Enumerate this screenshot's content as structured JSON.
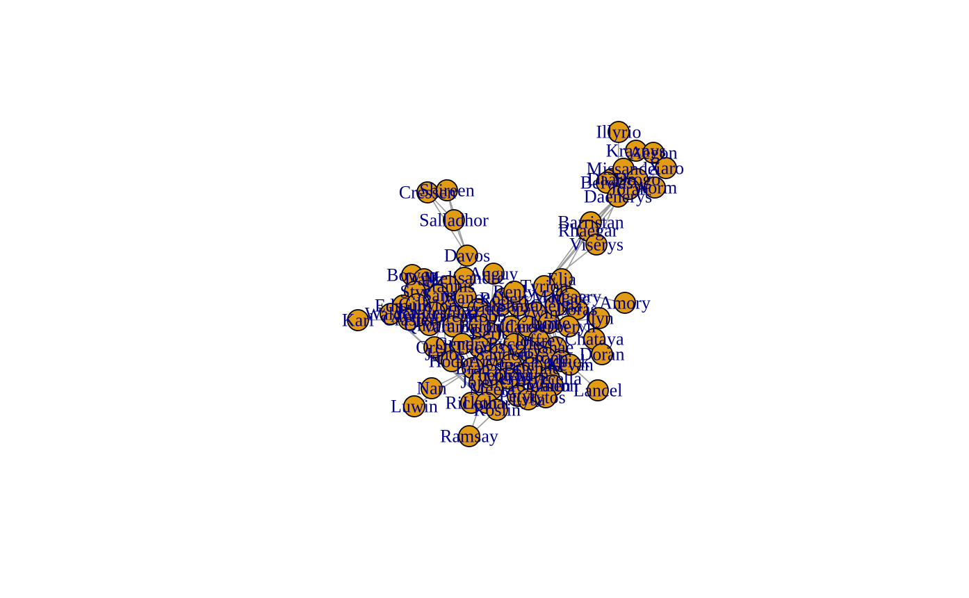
{
  "graph": {
    "style": {
      "node_fill": "#e29c13",
      "node_stroke": "#000000",
      "edge_color": "#9a9a9a",
      "label_color": "#00008b"
    },
    "nodes": [
      {
        "id": "Illyrio",
        "label": "Illyrio"
      },
      {
        "id": "Kraznys",
        "label": "Kraznys"
      },
      {
        "id": "Aegon",
        "label": "Aegon"
      },
      {
        "id": "Xaro",
        "label": "Xaro"
      },
      {
        "id": "Daario",
        "label": "Daario"
      },
      {
        "id": "Missandei",
        "label": "Missandei"
      },
      {
        "id": "Belwas",
        "label": "Belwas"
      },
      {
        "id": "Drogo",
        "label": "Drogo"
      },
      {
        "id": "Daenerys",
        "label": "Daenerys"
      },
      {
        "id": "Worm",
        "label": "Worm"
      },
      {
        "id": "Jorah",
        "label": "Jorah"
      },
      {
        "id": "Barristan",
        "label": "Barristan"
      },
      {
        "id": "Rhaegar",
        "label": "Rhaegar"
      },
      {
        "id": "Viserys",
        "label": "Viserys"
      },
      {
        "id": "Cressen",
        "label": "Cressen"
      },
      {
        "id": "Shireen",
        "label": "Shireen"
      },
      {
        "id": "Salladhor",
        "label": "Salladhor"
      },
      {
        "id": "Davos",
        "label": "Davos"
      },
      {
        "id": "Melisandre",
        "label": "Melisandre"
      },
      {
        "id": "Stannis",
        "label": "Stannis"
      },
      {
        "id": "Bowen",
        "label": "Bowen"
      },
      {
        "id": "Dalla",
        "label": "Dalla"
      },
      {
        "id": "Anguy",
        "label": "Anguy"
      },
      {
        "id": "Styr",
        "label": "Styr"
      },
      {
        "id": "Elia",
        "label": "Elia"
      },
      {
        "id": "Tyrion",
        "label": "Tyrion"
      },
      {
        "id": "Amory",
        "label": "Amory"
      },
      {
        "id": "Ilyn",
        "label": "Ilyn"
      },
      {
        "id": "Edmure",
        "label": "Edmure"
      },
      {
        "id": "Walder",
        "label": "Walder"
      },
      {
        "id": "Karl",
        "label": "Karl"
      },
      {
        "id": "Qhorin",
        "label": "Qhorin"
      },
      {
        "id": "Jon",
        "label": "Jon"
      },
      {
        "id": "Aemon",
        "label": "Aemon"
      },
      {
        "id": "Sam",
        "label": "Sam"
      },
      {
        "id": "Grenn",
        "label": "Grenn"
      },
      {
        "id": "Gilly",
        "label": "Gilly"
      },
      {
        "id": "Craster",
        "label": "Craster"
      },
      {
        "id": "Mance",
        "label": "Mance"
      },
      {
        "id": "Ygritte",
        "label": "Ygritte"
      },
      {
        "id": "Rattleshirt",
        "label": "Rattleshirt"
      },
      {
        "id": "Varamyr",
        "label": "Varamyr"
      },
      {
        "id": "Robb",
        "label": "Robb"
      },
      {
        "id": "Catelyn",
        "label": "Catelyn"
      },
      {
        "id": "Eddard",
        "label": "Eddard"
      },
      {
        "id": "Tywin",
        "label": "Tywin"
      },
      {
        "id": "Cersei",
        "label": "Cersei"
      },
      {
        "id": "Jaime",
        "label": "Jaime"
      },
      {
        "id": "Sansa",
        "label": "Sansa"
      },
      {
        "id": "Joffrey",
        "label": "Joffrey"
      },
      {
        "id": "Margaery",
        "label": "Margaery"
      },
      {
        "id": "Loras",
        "label": "Loras"
      },
      {
        "id": "Olenna",
        "label": "Olenna"
      },
      {
        "id": "Mace",
        "label": "Mace"
      },
      {
        "id": "Oberyn",
        "label": "Oberyn"
      },
      {
        "id": "Chataya",
        "label": "Chataya"
      },
      {
        "id": "Doran",
        "label": "Doran"
      },
      {
        "id": "Shae",
        "label": "Shae"
      },
      {
        "id": "Bronn",
        "label": "Bronn"
      },
      {
        "id": "Varys",
        "label": "Varys"
      },
      {
        "id": "Pycelle",
        "label": "Pycelle"
      },
      {
        "id": "Podrick",
        "label": "Podrick"
      },
      {
        "id": "Kevan",
        "label": "Kevan"
      },
      {
        "id": "Lancel",
        "label": "Lancel"
      },
      {
        "id": "Myrcella",
        "label": "Myrcella"
      },
      {
        "id": "Tommen",
        "label": "Tommen"
      },
      {
        "id": "Sandor",
        "label": "Sandor"
      },
      {
        "id": "Gregor",
        "label": "Gregor"
      },
      {
        "id": "Beric",
        "label": "Beric"
      },
      {
        "id": "Thoros",
        "label": "Thoros"
      },
      {
        "id": "Gendry",
        "label": "Gendry"
      },
      {
        "id": "Arya",
        "label": "Arya"
      },
      {
        "id": "Brienne",
        "label": "Brienne"
      },
      {
        "id": "Qyburn",
        "label": "Qyburn"
      },
      {
        "id": "Meryn",
        "label": "Meryn"
      },
      {
        "id": "Janos",
        "label": "Janos"
      },
      {
        "id": "Hodor",
        "label": "Hodor"
      },
      {
        "id": "Bran",
        "label": "Bran"
      },
      {
        "id": "Jojen",
        "label": "Jojen"
      },
      {
        "id": "Meera",
        "label": "Meera"
      },
      {
        "id": "Rickon",
        "label": "Rickon"
      },
      {
        "id": "Nan",
        "label": "Nan"
      },
      {
        "id": "Luwin",
        "label": "Luwin"
      },
      {
        "id": "Lothar",
        "label": "Lothar"
      },
      {
        "id": "Roslin",
        "label": "Roslin"
      },
      {
        "id": "Ramsay",
        "label": "Ramsay"
      },
      {
        "id": "Petyr",
        "label": "Petyr"
      },
      {
        "id": "Lysa",
        "label": "Lysa"
      },
      {
        "id": "Robert",
        "label": "Robert"
      },
      {
        "id": "Renly",
        "label": "Renly"
      },
      {
        "id": "Balon",
        "label": "Balon"
      },
      {
        "id": "Theon",
        "label": "Theon"
      },
      {
        "id": "Walton",
        "label": "Walton"
      },
      {
        "id": "Kevan2",
        "label": "Tytos"
      },
      {
        "id": "Orell",
        "label": "Orell"
      }
    ],
    "edges": [
      [
        "Illyrio",
        "Daenerys"
      ],
      [
        "Kraznys",
        "Daenerys"
      ],
      [
        "Aegon",
        "Daenerys"
      ],
      [
        "Xaro",
        "Daenerys"
      ],
      [
        "Daario",
        "Daenerys"
      ],
      [
        "Missandei",
        "Daenerys"
      ],
      [
        "Belwas",
        "Daenerys"
      ],
      [
        "Drogo",
        "Daenerys"
      ],
      [
        "Worm",
        "Daenerys"
      ],
      [
        "Jorah",
        "Daenerys"
      ],
      [
        "Barristan",
        "Daenerys"
      ],
      [
        "Rhaegar",
        "Daenerys"
      ],
      [
        "Viserys",
        "Daenerys"
      ],
      [
        "Jorah",
        "Barristan"
      ],
      [
        "Barristan",
        "Tyrion"
      ],
      [
        "Jorah",
        "Tyrion"
      ],
      [
        "Rhaegar",
        "Elia"
      ],
      [
        "Viserys",
        "Tyrion"
      ],
      [
        "Daenerys",
        "Tyrion"
      ],
      [
        "Drogo",
        "Jorah"
      ],
      [
        "Cressen",
        "Salladhor"
      ],
      [
        "Shireen",
        "Salladhor"
      ],
      [
        "Cressen",
        "Davos"
      ],
      [
        "Shireen",
        "Davos"
      ],
      [
        "Salladhor",
        "Davos"
      ],
      [
        "Davos",
        "Stannis"
      ],
      [
        "Davos",
        "Melisandre"
      ],
      [
        "Stannis",
        "Melisandre"
      ],
      [
        "Stannis",
        "Jon"
      ],
      [
        "Melisandre",
        "Jon"
      ],
      [
        "Bowen",
        "Jon"
      ],
      [
        "Dalla",
        "Jon"
      ],
      [
        "Styr",
        "Jon"
      ],
      [
        "Anguy",
        "Beric"
      ],
      [
        "Elia",
        "Oberyn"
      ],
      [
        "Tyrion",
        "Cersei"
      ],
      [
        "Amory",
        "Tyrion"
      ],
      [
        "Ilyn",
        "Cersei"
      ],
      [
        "Edmure",
        "Robb"
      ],
      [
        "Walder",
        "Robb"
      ],
      [
        "Karl",
        "Craster"
      ],
      [
        "Qhorin",
        "Jon"
      ],
      [
        "Jon",
        "Aemon"
      ],
      [
        "Jon",
        "Sam"
      ],
      [
        "Sam",
        "Gilly"
      ],
      [
        "Jon",
        "Ygritte"
      ],
      [
        "Jon",
        "Mance"
      ],
      [
        "Robb",
        "Catelyn"
      ],
      [
        "Eddard",
        "Catelyn"
      ],
      [
        "Eddard",
        "Robert"
      ],
      [
        "Tywin",
        "Tyrion"
      ],
      [
        "Cersei",
        "Jaime"
      ],
      [
        "Sansa",
        "Tyrion"
      ],
      [
        "Joffrey",
        "Cersei"
      ],
      [
        "Margaery",
        "Loras"
      ],
      [
        "Olenna",
        "Margaery"
      ],
      [
        "Mace",
        "Tywin"
      ],
      [
        "Oberyn",
        "Tyrion"
      ],
      [
        "Chataya",
        "Tyrion"
      ],
      [
        "Doran",
        "Oberyn"
      ],
      [
        "Shae",
        "Tyrion"
      ],
      [
        "Bronn",
        "Tyrion"
      ],
      [
        "Varys",
        "Tyrion"
      ],
      [
        "Pycelle",
        "Tyrion"
      ],
      [
        "Podrick",
        "Tyrion"
      ],
      [
        "Kevan",
        "Tywin"
      ],
      [
        "Lancel",
        "Cersei"
      ],
      [
        "Myrcella",
        "Cersei"
      ],
      [
        "Tommen",
        "Cersei"
      ],
      [
        "Sandor",
        "Arya"
      ],
      [
        "Gregor",
        "Sandor"
      ],
      [
        "Beric",
        "Arya"
      ],
      [
        "Thoros",
        "Beric"
      ],
      [
        "Gendry",
        "Arya"
      ],
      [
        "Brienne",
        "Jaime"
      ],
      [
        "Qyburn",
        "Cersei"
      ],
      [
        "Meryn",
        "Joffrey"
      ],
      [
        "Janos",
        "Jon"
      ],
      [
        "Hodor",
        "Bran"
      ],
      [
        "Jojen",
        "Bran"
      ],
      [
        "Meera",
        "Bran"
      ],
      [
        "Rickon",
        "Bran"
      ],
      [
        "Nan",
        "Bran"
      ],
      [
        "Luwin",
        "Bran"
      ],
      [
        "Lothar",
        "Walder"
      ],
      [
        "Roslin",
        "Walder"
      ],
      [
        "Ramsay",
        "Roslin"
      ],
      [
        "Ramsay",
        "Theon"
      ],
      [
        "Petyr",
        "Sansa"
      ],
      [
        "Lysa",
        "Petyr"
      ],
      [
        "Renly",
        "Robert"
      ],
      [
        "Balon",
        "Theon"
      ],
      [
        "Walton",
        "Jaime"
      ],
      [
        "Kevan2",
        "Tywin"
      ],
      [
        "Orell",
        "Jon"
      ],
      [
        "Arya",
        "Jon"
      ],
      [
        "Bran",
        "Jon"
      ],
      [
        "Robb",
        "Theon"
      ],
      [
        "Eddard",
        "Arya"
      ],
      [
        "Sansa",
        "Joffrey"
      ],
      [
        "Jaime",
        "Tyrion"
      ]
    ]
  }
}
